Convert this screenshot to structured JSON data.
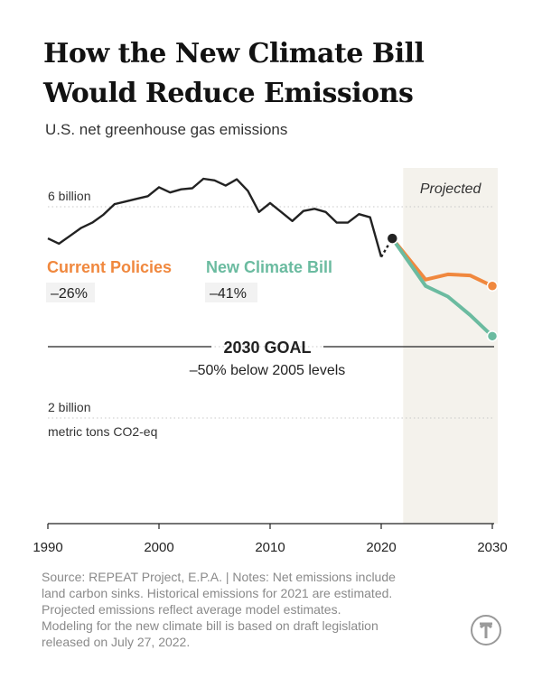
{
  "title_lines": [
    "How the New Climate Bill",
    "Would Reduce Emissions"
  ],
  "subtitle": "U.S. net greenhouse gas emissions",
  "source_lines": [
    "Source: REPEAT Project, E.P.A. | Notes: Net emissions include",
    "land carbon sinks. Historical emissions for 2021 are estimated.",
    "Projected emissions reflect average model estimates.",
    "Modeling for the new climate bill is based on draft legislation",
    "released on July 27, 2022."
  ],
  "logo": "nyt-logo-icon",
  "chart_data": {
    "type": "line",
    "ylim": [
      0,
      7
    ],
    "xlim": [
      1990,
      2030
    ],
    "ylabel_note": "metric tons CO2-eq",
    "ytick_labels": [
      {
        "value": 6,
        "label": "6 billion"
      },
      {
        "value": 2,
        "label": "2 billion"
      }
    ],
    "xtick_labels": [
      "1990",
      "2000",
      "2010",
      "2020",
      "2030"
    ],
    "xticks": [
      1990,
      2000,
      2010,
      2020,
      2030
    ],
    "projected": {
      "label": "Projected",
      "start": 2021,
      "end": 2030
    },
    "goal": {
      "value": 3.3,
      "label": "2030 GOAL",
      "sublabel": "–50% below 2005 levels"
    },
    "colors": {
      "historical": "#222222",
      "current": "#f0883e",
      "bill": "#6bbba0",
      "projected_bg": "#f4f2ec",
      "grid": "#c8c8c8"
    },
    "series": [
      {
        "key": "historical",
        "x": [
          1990,
          1991,
          1992,
          1993,
          1994,
          1995,
          1996,
          1997,
          1998,
          1999,
          2000,
          2001,
          2002,
          2003,
          2004,
          2005,
          2006,
          2007,
          2008,
          2009,
          2010,
          2011,
          2012,
          2013,
          2014,
          2015,
          2016,
          2017,
          2018,
          2019,
          2020
        ],
        "y": [
          5.4,
          5.3,
          5.45,
          5.6,
          5.7,
          5.85,
          6.05,
          6.1,
          6.15,
          6.2,
          6.37,
          6.27,
          6.33,
          6.35,
          6.53,
          6.5,
          6.4,
          6.52,
          6.3,
          5.9,
          6.07,
          5.9,
          5.73,
          5.92,
          5.96,
          5.9,
          5.7,
          5.7,
          5.86,
          5.8,
          5.05
        ]
      },
      {
        "key": "estimate",
        "x": [
          2020,
          2021
        ],
        "y": [
          5.05,
          5.4
        ]
      },
      {
        "key": "current",
        "name": "Current Policies",
        "change": "–26%",
        "x": [
          2021,
          2024,
          2026,
          2028,
          2030
        ],
        "y": [
          5.4,
          4.62,
          4.72,
          4.7,
          4.5
        ]
      },
      {
        "key": "bill",
        "name": "New Climate Bill",
        "change": "–41%",
        "x": [
          2021,
          2024,
          2026,
          2028,
          2030
        ],
        "y": [
          5.4,
          4.5,
          4.3,
          3.95,
          3.55
        ]
      }
    ]
  }
}
